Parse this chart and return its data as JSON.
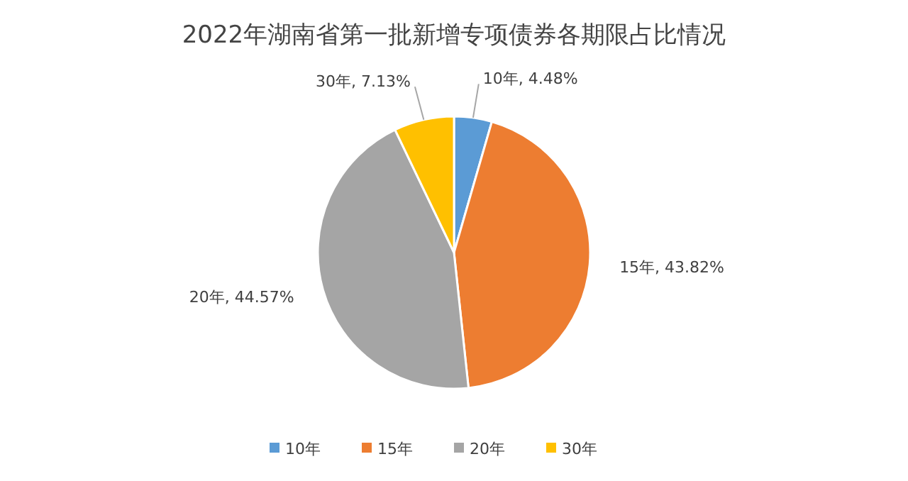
{
  "chart_data": {
    "type": "pie",
    "title": "2022年湖南省第一批新增专项债券各期限占比情况",
    "categories": [
      "10年",
      "15年",
      "20年",
      "30年"
    ],
    "values": [
      4.48,
      43.82,
      44.57,
      7.13
    ],
    "colors": [
      "#5b9bd5",
      "#ed7d31",
      "#a5a5a5",
      "#ffc000"
    ],
    "value_labels": [
      "10年, 4.48%",
      "15年, 43.82%",
      "20年, 44.57%",
      "30年, 7.13%"
    ],
    "legend": "bottom"
  }
}
